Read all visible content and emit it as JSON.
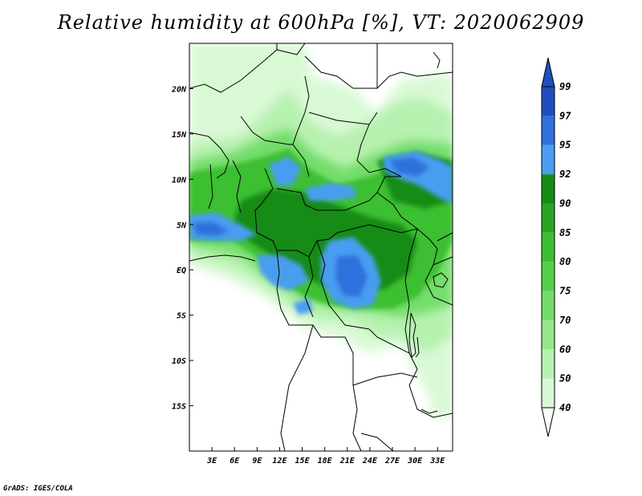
{
  "title": "Relative humidity at 600hPa [%], VT: 2020062909",
  "footer": "GrADS: IGES/COLA",
  "map": {
    "lon_range": [
      0,
      35
    ],
    "lat_range": [
      -20,
      25
    ],
    "x_ticks": [
      "3E",
      "6E",
      "9E",
      "12E",
      "15E",
      "18E",
      "21E",
      "24E",
      "27E",
      "30E",
      "33E"
    ],
    "y_ticks": [
      "20N",
      "15N",
      "10N",
      "5N",
      "EQ",
      "5S",
      "10S",
      "15S"
    ]
  },
  "colorbar": {
    "levels": [
      "40",
      "50",
      "60",
      "70",
      "75",
      "80",
      "85",
      "90",
      "92",
      "95",
      "97",
      "99"
    ],
    "colors": [
      "#f4fff2",
      "#d9f9d5",
      "#b7f1b0",
      "#94e88b",
      "#73dd6a",
      "#55d04b",
      "#3cbf33",
      "#28a521",
      "#178b13",
      "#4a9df0",
      "#2f70dc",
      "#1f4fbf",
      "#ffffff"
    ]
  },
  "legend_colors": {
    "land": "#ffffff",
    "border": "#000000"
  }
}
